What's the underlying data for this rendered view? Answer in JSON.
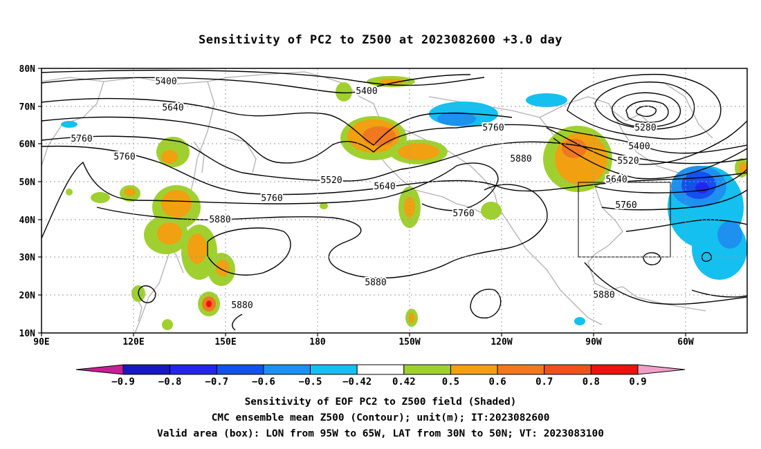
{
  "title": "Sensitivity of PC2 to Z500 at 2023082600 +3.0 day",
  "lat_labels": [
    "80N",
    "70N",
    "60N",
    "50N",
    "40N",
    "30N",
    "20N",
    "10N"
  ],
  "lon_labels": [
    "90E",
    "120E",
    "150E",
    "180",
    "150W",
    "120W",
    "90W",
    "60W"
  ],
  "colorbar": {
    "labels": [
      "-0.9",
      "-0.8",
      "-0.7",
      "-0.6",
      "-0.5",
      "-0.42",
      "0.42",
      "0.5",
      "0.6",
      "0.7",
      "0.8",
      "0.9"
    ],
    "colors": [
      "#1818c0",
      "#2424f0",
      "#1450f0",
      "#1e90f0",
      "#14c0f0",
      "#ffffff",
      "#a0d030",
      "#f0a010",
      "#f07820",
      "#f05020",
      "#f01010"
    ],
    "low_color": "#c81e96",
    "high_color": "#f0a0c8"
  },
  "contour_labels": [
    "5400",
    "5400",
    "5640",
    "5760",
    "5760",
    "5520",
    "5640",
    "5760",
    "5760",
    "5760",
    "5880",
    "5880",
    "5880",
    "5880",
    "5880",
    "5280",
    "5400",
    "5520",
    "5640",
    "5760"
  ],
  "captions": [
    "Sensitivity of EOF PC2 to Z500 field (Shaded)",
    "CMC ensemble mean Z500 (Contour); unit(m); IT:2023082600",
    "Valid area (box): LON from 95W to 65W, LAT from 30N to 50N; VT: 2023083100"
  ]
}
